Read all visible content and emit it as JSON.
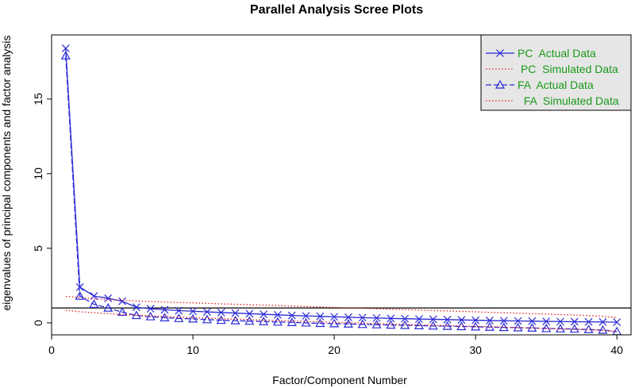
{
  "chart_data": {
    "type": "line",
    "title": "Parallel Analysis Scree Plots",
    "xlabel": "Factor/Component Number",
    "ylabel": "eigenvalues of principal components and factor analysis",
    "xlim": [
      0,
      41
    ],
    "ylim": [
      -0.8,
      19.3
    ],
    "x_ticks": [
      0,
      10,
      20,
      30,
      40
    ],
    "y_ticks": [
      0,
      5,
      10,
      15
    ],
    "x": [
      1,
      2,
      3,
      4,
      5,
      6,
      7,
      8,
      9,
      10,
      11,
      12,
      13,
      14,
      15,
      16,
      17,
      18,
      19,
      20,
      21,
      22,
      23,
      24,
      25,
      26,
      27,
      28,
      29,
      30,
      31,
      32,
      33,
      34,
      35,
      36,
      37,
      38,
      39,
      40
    ],
    "reference_line": {
      "y": 1
    },
    "legend_position": "top-right",
    "series": [
      {
        "name": "PC  Actual Data",
        "legend_label": "PC  Actual Data",
        "style": "x-markers-solid",
        "color": "#2b2bd6",
        "values": [
          18.4,
          2.4,
          1.8,
          1.65,
          1.45,
          1.05,
          0.95,
          0.88,
          0.82,
          0.78,
          0.74,
          0.7,
          0.66,
          0.62,
          0.58,
          0.54,
          0.5,
          0.47,
          0.44,
          0.41,
          0.38,
          0.35,
          0.33,
          0.3,
          0.28,
          0.26,
          0.24,
          0.22,
          0.2,
          0.18,
          0.16,
          0.14,
          0.13,
          0.12,
          0.1,
          0.09,
          0.08,
          0.07,
          0.06,
          0.05
        ]
      },
      {
        "name": "PC  Simulated Data",
        "legend_label": " PC  Simulated Data",
        "style": "dotted",
        "color": "#e02020",
        "values": [
          1.78,
          1.7,
          1.62,
          1.56,
          1.52,
          1.47,
          1.43,
          1.4,
          1.37,
          1.34,
          1.31,
          1.28,
          1.25,
          1.22,
          1.19,
          1.16,
          1.13,
          1.1,
          1.07,
          1.04,
          1.01,
          0.98,
          0.95,
          0.92,
          0.89,
          0.86,
          0.83,
          0.8,
          0.77,
          0.74,
          0.71,
          0.68,
          0.65,
          0.62,
          0.59,
          0.56,
          0.53,
          0.49,
          0.45,
          0.35
        ]
      },
      {
        "name": "FA  Actual Data",
        "legend_label": "FA  Actual Data",
        "style": "triangle-markers-dashed",
        "color": "#2b2bd6",
        "values": [
          17.9,
          1.8,
          1.25,
          1.0,
          0.72,
          0.5,
          0.42,
          0.35,
          0.3,
          0.27,
          0.22,
          0.18,
          0.15,
          0.12,
          0.09,
          0.06,
          0.03,
          0.0,
          -0.03,
          -0.05,
          -0.07,
          -0.1,
          -0.12,
          -0.14,
          -0.16,
          -0.18,
          -0.2,
          -0.22,
          -0.24,
          -0.26,
          -0.28,
          -0.3,
          -0.32,
          -0.34,
          -0.37,
          -0.39,
          -0.41,
          -0.44,
          -0.48,
          -0.58
        ]
      },
      {
        "name": "FA  Simulated Data",
        "legend_label": "  FA  Simulated Data",
        "style": "dotted",
        "color": "#e02020",
        "values": [
          0.85,
          0.75,
          0.68,
          0.62,
          0.56,
          0.51,
          0.47,
          0.43,
          0.39,
          0.35,
          0.32,
          0.28,
          0.25,
          0.22,
          0.19,
          0.16,
          0.13,
          0.1,
          0.07,
          0.04,
          0.01,
          -0.02,
          -0.05,
          -0.08,
          -0.1,
          -0.13,
          -0.16,
          -0.18,
          -0.21,
          -0.24,
          -0.26,
          -0.29,
          -0.32,
          -0.34,
          -0.37,
          -0.4,
          -0.43,
          -0.46,
          -0.5,
          -0.6
        ]
      }
    ]
  }
}
